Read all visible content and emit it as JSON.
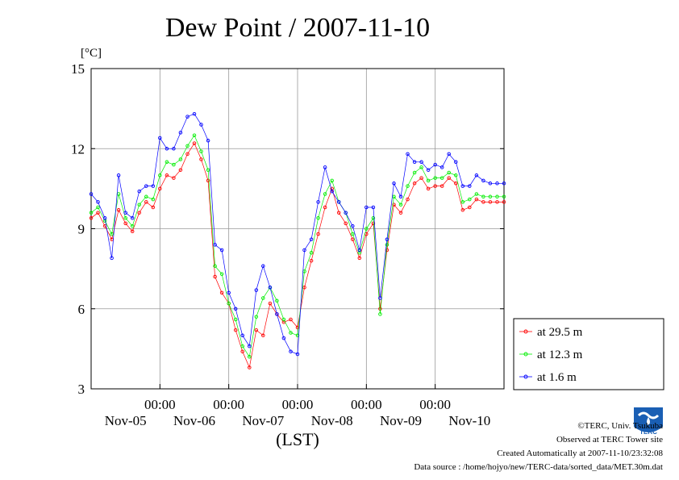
{
  "chart_data": {
    "type": "line",
    "title": "Dew Point / 2007-11-10",
    "ylabel": "[°C]",
    "xlabel": "(LST)",
    "ylim": [
      3,
      15
    ],
    "yticks": [
      3,
      6,
      9,
      12,
      15
    ],
    "xlim": [
      0,
      6
    ],
    "x_unit": "days from 2007-11-04 12:00 LST",
    "xticks": [
      {
        "x": 1,
        "time": "00:00",
        "day": "Nov-05"
      },
      {
        "x": 2,
        "time": "00:00",
        "day": "Nov-06"
      },
      {
        "x": 3,
        "time": "00:00",
        "day": "Nov-07"
      },
      {
        "x": 4,
        "time": "00:00",
        "day": "Nov-08"
      },
      {
        "x": 5,
        "time": "00:00",
        "day": "Nov-09"
      },
      {
        "x": 6,
        "time": "",
        "day": "Nov-10"
      }
    ],
    "grid": true,
    "legend_position": "bottom-right outside",
    "x": [
      0.0,
      0.1,
      0.2,
      0.3,
      0.4,
      0.5,
      0.6,
      0.7,
      0.8,
      0.9,
      1.0,
      1.1,
      1.2,
      1.3,
      1.4,
      1.5,
      1.6,
      1.7,
      1.8,
      1.9,
      2.0,
      2.1,
      2.2,
      2.3,
      2.4,
      2.5,
      2.6,
      2.7,
      2.8,
      2.9,
      3.0,
      3.1,
      3.2,
      3.3,
      3.4,
      3.5,
      3.6,
      3.7,
      3.8,
      3.9,
      4.0,
      4.1,
      4.2,
      4.3,
      4.4,
      4.5,
      4.6,
      4.7,
      4.8,
      4.9,
      5.0,
      5.1,
      5.2,
      5.3,
      5.4,
      5.5,
      5.6,
      5.7,
      5.8,
      5.9,
      6.0
    ],
    "series": [
      {
        "name": "at 29.5 m",
        "color": "#ff0000",
        "values": [
          9.4,
          9.6,
          9.1,
          8.6,
          9.7,
          9.2,
          8.9,
          9.6,
          10.0,
          9.8,
          10.5,
          11.0,
          10.9,
          11.2,
          11.8,
          12.2,
          11.6,
          10.8,
          7.2,
          6.6,
          6.2,
          5.2,
          4.4,
          3.8,
          5.2,
          5.0,
          6.2,
          5.8,
          5.5,
          5.6,
          5.3,
          6.8,
          7.8,
          8.8,
          9.8,
          10.5,
          9.6,
          9.2,
          8.6,
          7.9,
          8.8,
          9.2,
          6.0,
          8.2,
          9.9,
          9.6,
          10.1,
          10.7,
          10.9,
          10.5,
          10.6,
          10.6,
          10.9,
          10.7,
          9.7,
          9.8,
          10.1,
          10.0,
          10.0,
          10.0,
          10.0
        ]
      },
      {
        "name": "at 12.3 m",
        "color": "#00ee00",
        "values": [
          9.6,
          9.8,
          9.3,
          8.8,
          10.3,
          9.4,
          9.1,
          9.9,
          10.2,
          10.1,
          11.0,
          11.5,
          11.4,
          11.6,
          12.1,
          12.5,
          11.9,
          11.2,
          7.6,
          7.3,
          6.2,
          5.6,
          4.6,
          4.2,
          5.7,
          6.4,
          6.8,
          6.3,
          5.6,
          5.1,
          5.0,
          7.4,
          8.1,
          9.4,
          10.3,
          10.8,
          10.0,
          9.6,
          8.8,
          8.1,
          9.0,
          9.4,
          5.8,
          8.4,
          10.2,
          9.9,
          10.6,
          11.1,
          11.3,
          10.8,
          10.9,
          10.9,
          11.1,
          11.0,
          10.0,
          10.1,
          10.3,
          10.2,
          10.2,
          10.2,
          10.2
        ]
      },
      {
        "name": "at 1.6 m",
        "color": "#0000ff",
        "values": [
          10.3,
          10.0,
          9.4,
          7.9,
          11.0,
          9.6,
          9.4,
          10.4,
          10.6,
          10.6,
          12.4,
          12.0,
          12.0,
          12.6,
          13.2,
          13.3,
          12.9,
          12.3,
          8.4,
          8.2,
          6.6,
          6.0,
          5.0,
          4.6,
          6.7,
          7.6,
          6.8,
          5.8,
          4.9,
          4.4,
          4.3,
          8.2,
          8.6,
          10.0,
          11.3,
          10.4,
          10.0,
          9.6,
          9.1,
          8.2,
          9.8,
          9.8,
          6.4,
          8.6,
          10.7,
          10.2,
          11.8,
          11.5,
          11.5,
          11.2,
          11.4,
          11.3,
          11.8,
          11.5,
          10.6,
          10.6,
          11.0,
          10.8,
          10.7,
          10.7,
          10.7
        ]
      }
    ]
  },
  "credits": {
    "copyright": "©TERC, Univ. Tsukuba",
    "site": "Observed at TERC Tower site",
    "created": "Created Automatically at 2007-11-10/23:32:08",
    "source": "Data source : /home/hojyo/new/TERC-data/sorted_data/MET.30m.dat"
  },
  "logo": {
    "text": "TERC",
    "icon": "terc-logo",
    "color": "#1a5fb4"
  }
}
